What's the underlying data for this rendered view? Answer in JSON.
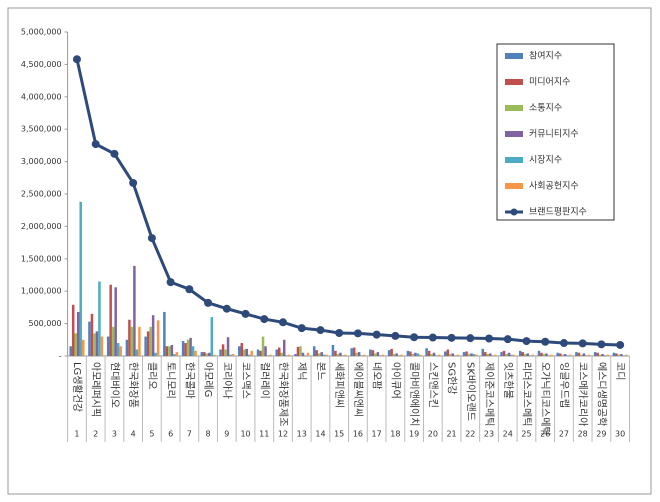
{
  "chart_data": {
    "type": "bar_line",
    "categories": [
      "LG생활건강",
      "아모레퍼시픽",
      "현대바이오",
      "한국화장품",
      "클리오",
      "토니모리",
      "한국콜마",
      "아모레G",
      "코리아나",
      "코스맥스",
      "컬러레이",
      "한국화장품제조",
      "제닉",
      "본느",
      "세화피앤씨",
      "에이블씨엔씨",
      "네오팜",
      "아이큐어",
      "콜마비앤에이치",
      "스킨앤스킨",
      "SG한강",
      "SK바이오랜드",
      "제이준코스메틱",
      "잇츠한불",
      "리더스코스메틱",
      "오가닉티코스메틱",
      "잉글우드랩",
      "코스메카코리아",
      "에스디생명공학",
      "코디"
    ],
    "ranks": [
      1,
      2,
      3,
      4,
      5,
      6,
      7,
      8,
      9,
      10,
      11,
      12,
      13,
      14,
      15,
      16,
      17,
      18,
      19,
      20,
      21,
      22,
      23,
      24,
      25,
      26,
      27,
      28,
      29,
      30
    ],
    "series": [
      {
        "name": "참여지수",
        "color": "#4f81bd",
        "values": [
          150000,
          530000,
          300000,
          250000,
          300000,
          680000,
          230000,
          60000,
          100000,
          150000,
          100000,
          100000,
          30000,
          150000,
          170000,
          120000,
          100000,
          90000,
          80000,
          120000,
          70000,
          60000,
          110000,
          60000,
          80000,
          80000,
          50000,
          60000,
          60000,
          50000
        ]
      },
      {
        "name": "미디어지수",
        "color": "#c0504d",
        "values": [
          790000,
          650000,
          1100000,
          560000,
          380000,
          150000,
          200000,
          60000,
          180000,
          200000,
          80000,
          130000,
          140000,
          90000,
          80000,
          130000,
          90000,
          110000,
          70000,
          80000,
          100000,
          70000,
          60000,
          80000,
          60000,
          50000,
          40000,
          50000,
          50000,
          40000
        ]
      },
      {
        "name": "소통지수",
        "color": "#9bbb59",
        "values": [
          350000,
          350000,
          450000,
          450000,
          450000,
          150000,
          250000,
          40000,
          100000,
          100000,
          300000,
          50000,
          150000,
          40000,
          30000,
          50000,
          40000,
          30000,
          30000,
          30000,
          30000,
          30000,
          30000,
          30000,
          30000,
          30000,
          20000,
          20000,
          20000,
          20000
        ]
      },
      {
        "name": "커뮤니티지수",
        "color": "#8064a2",
        "values": [
          680000,
          380000,
          1060000,
          1390000,
          630000,
          170000,
          280000,
          50000,
          290000,
          110000,
          150000,
          250000,
          50000,
          60000,
          50000,
          60000,
          60000,
          40000,
          50000,
          50000,
          40000,
          40000,
          40000,
          50000,
          40000,
          40000,
          30000,
          40000,
          30000,
          30000
        ]
      },
      {
        "name": "시장지수",
        "color": "#4bacc6",
        "values": [
          2380000,
          1150000,
          200000,
          100000,
          50000,
          30000,
          150000,
          600000,
          20000,
          20000,
          10000,
          10000,
          10000,
          20000,
          10000,
          10000,
          10000,
          10000,
          40000,
          10000,
          10000,
          30000,
          10000,
          20000,
          10000,
          10000,
          10000,
          10000,
          10000,
          10000
        ]
      },
      {
        "name": "사회공헌지수",
        "color": "#f79646",
        "values": [
          250000,
          300000,
          150000,
          450000,
          550000,
          60000,
          80000,
          20000,
          30000,
          80000,
          20000,
          20000,
          50000,
          20000,
          20000,
          20000,
          20000,
          20000,
          20000,
          20000,
          20000,
          20000,
          20000,
          20000,
          20000,
          20000,
          20000,
          20000,
          20000,
          20000
        ]
      },
      {
        "name": "브랜드평판지수",
        "color": "#2e4a7a",
        "kind": "line",
        "values": [
          4580000,
          3270000,
          3120000,
          2670000,
          1820000,
          1140000,
          1030000,
          820000,
          730000,
          650000,
          570000,
          520000,
          430000,
          400000,
          355000,
          350000,
          330000,
          310000,
          290000,
          285000,
          280000,
          275000,
          270000,
          260000,
          230000,
          220000,
          200000,
          195000,
          180000,
          170000
        ]
      }
    ],
    "ylim": [
      0,
      5000000
    ],
    "yticks": [
      {
        "value": 0,
        "label": "-"
      },
      {
        "value": 500000,
        "label": "500,000"
      },
      {
        "value": 1000000,
        "label": "1,000,000"
      },
      {
        "value": 1500000,
        "label": "1,500,000"
      },
      {
        "value": 2000000,
        "label": "2,000,000"
      },
      {
        "value": 2500000,
        "label": "2,500,000"
      },
      {
        "value": 3000000,
        "label": "3,000,000"
      },
      {
        "value": 3500000,
        "label": "3,500,000"
      },
      {
        "value": 4000000,
        "label": "4,000,000"
      },
      {
        "value": 4500000,
        "label": "4,500,000"
      },
      {
        "value": 5000000,
        "label": "5,000,000"
      }
    ],
    "legend": "top-right"
  }
}
